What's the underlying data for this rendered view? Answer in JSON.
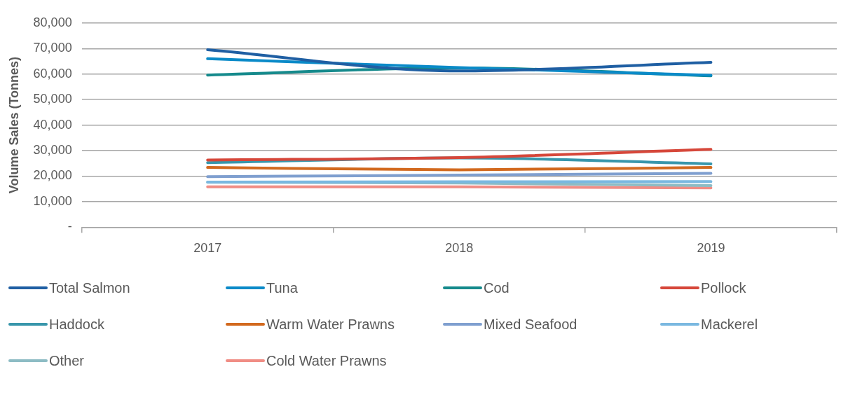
{
  "chart_data": {
    "type": "line",
    "ylabel": "Volume Sales (Tonnes)",
    "categories": [
      "2017",
      "2018",
      "2019"
    ],
    "ylim": [
      0,
      80000
    ],
    "yticks": [
      {
        "value": 0,
        "label": "-"
      },
      {
        "value": 10000,
        "label": "10,000"
      },
      {
        "value": 20000,
        "label": "20,000"
      },
      {
        "value": 30000,
        "label": "30,000"
      },
      {
        "value": 40000,
        "label": "40,000"
      },
      {
        "value": 50000,
        "label": "50,000"
      },
      {
        "value": 60000,
        "label": "60,000"
      },
      {
        "value": 70000,
        "label": "70,000"
      },
      {
        "value": 80000,
        "label": "80,000"
      }
    ],
    "grid": "y",
    "legend": "bottom",
    "marker": "none",
    "line_style": "solid",
    "series": [
      {
        "name": "Total Salmon",
        "color": "#1f5fa3",
        "values": [
          69500,
          61200,
          64600
        ]
      },
      {
        "name": "Tuna",
        "color": "#0a8ac8",
        "values": [
          66000,
          62500,
          59500
        ]
      },
      {
        "name": "Cod",
        "color": "#158a8c",
        "values": [
          59600,
          62400,
          59300
        ]
      },
      {
        "name": "Pollock",
        "color": "#d6473a",
        "values": [
          26300,
          27300,
          30500
        ]
      },
      {
        "name": "Haddock",
        "color": "#3896ab",
        "values": [
          25300,
          27100,
          24800
        ]
      },
      {
        "name": "Warm Water Prawns",
        "color": "#d2691e",
        "values": [
          23400,
          22500,
          23400
        ]
      },
      {
        "name": "Mixed Seafood",
        "color": "#7f9fcf",
        "values": [
          19800,
          20400,
          21100
        ]
      },
      {
        "name": "Mackerel",
        "color": "#7ab8e0",
        "values": [
          17700,
          17800,
          17900
        ]
      },
      {
        "name": "Other",
        "color": "#8dbcc4",
        "values": [
          17600,
          17300,
          16300
        ]
      },
      {
        "name": "Cold Water Prawns",
        "color": "#f08d85",
        "values": [
          15800,
          15800,
          15400
        ]
      }
    ]
  }
}
